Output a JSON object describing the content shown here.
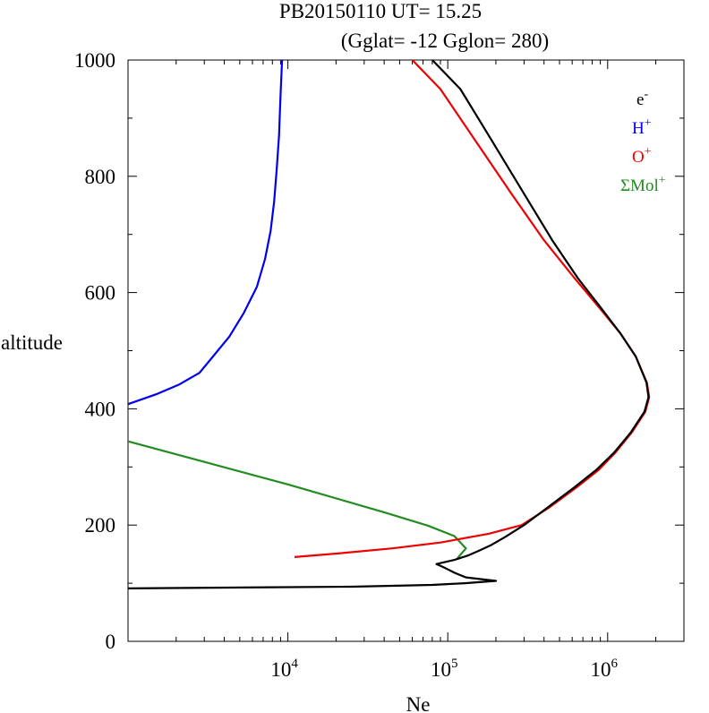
{
  "chart_data": {
    "type": "line",
    "title": "PB20150110   UT=  15.25",
    "subtitle": "(Gglat= -12   Gglon=  280)",
    "xlabel": "Ne",
    "ylabel": "altitude",
    "x_scale": "log",
    "xlim": [
      1000,
      3000000
    ],
    "ylim": [
      0,
      1000
    ],
    "x_ticks": [
      {
        "base": "10",
        "exp": "4",
        "value": 10000
      },
      {
        "base": "10",
        "exp": "5",
        "value": 100000
      },
      {
        "base": "10",
        "exp": "6",
        "value": 1000000
      }
    ],
    "y_ticks": [
      "0",
      "200",
      "400",
      "600",
      "800",
      "1000"
    ],
    "y_tick_values": [
      0,
      200,
      400,
      600,
      800,
      1000
    ],
    "grid": false,
    "legend_position": "top-right",
    "series": [
      {
        "name": "e",
        "sup": "-",
        "color": "#000000",
        "points": [
          [
            1000,
            91
          ],
          [
            8000,
            93
          ],
          [
            25000,
            94
          ],
          [
            80000,
            97
          ],
          [
            128000,
            100
          ],
          [
            200000,
            104
          ],
          [
            130000,
            110
          ],
          [
            110000,
            118
          ],
          [
            95000,
            127
          ],
          [
            85000,
            133
          ],
          [
            110000,
            140
          ],
          [
            135000,
            148
          ],
          [
            160000,
            157
          ],
          [
            185000,
            165
          ],
          [
            230000,
            180
          ],
          [
            300000,
            200
          ],
          [
            420000,
            230
          ],
          [
            620000,
            265
          ],
          [
            850000,
            295
          ],
          [
            1100000,
            325
          ],
          [
            1400000,
            360
          ],
          [
            1700000,
            395
          ],
          [
            1800000,
            420
          ],
          [
            1750000,
            445
          ],
          [
            1500000,
            490
          ],
          [
            1200000,
            530
          ],
          [
            900000,
            575
          ],
          [
            650000,
            625
          ],
          [
            450000,
            690
          ],
          [
            300000,
            770
          ],
          [
            190000,
            860
          ],
          [
            120000,
            950
          ],
          [
            80000,
            1000
          ]
        ]
      },
      {
        "name": "H",
        "sup": "+",
        "color": "#0000ee",
        "points": [
          [
            1000,
            408
          ],
          [
            1500,
            425
          ],
          [
            2100,
            442
          ],
          [
            2800,
            462
          ],
          [
            3400,
            490
          ],
          [
            4300,
            524
          ],
          [
            5300,
            565
          ],
          [
            6400,
            610
          ],
          [
            7200,
            658
          ],
          [
            7800,
            706
          ],
          [
            8200,
            756
          ],
          [
            8500,
            810
          ],
          [
            8800,
            870
          ],
          [
            9000,
            940
          ],
          [
            9200,
            1000
          ]
        ]
      },
      {
        "name": "O",
        "sup": "+",
        "color": "#ee0000",
        "points": [
          [
            11000,
            145
          ],
          [
            22000,
            152
          ],
          [
            45000,
            160
          ],
          [
            90000,
            170
          ],
          [
            180000,
            185
          ],
          [
            290000,
            200
          ],
          [
            430000,
            230
          ],
          [
            640000,
            265
          ],
          [
            880000,
            295
          ],
          [
            1120000,
            325
          ],
          [
            1420000,
            360
          ],
          [
            1720000,
            395
          ],
          [
            1820000,
            420
          ],
          [
            1760000,
            445
          ],
          [
            1500000,
            490
          ],
          [
            1200000,
            530
          ],
          [
            880000,
            575
          ],
          [
            620000,
            625
          ],
          [
            400000,
            690
          ],
          [
            250000,
            770
          ],
          [
            150000,
            860
          ],
          [
            90000,
            950
          ],
          [
            60000,
            1000
          ]
        ]
      },
      {
        "name": "ΣMol",
        "sup": "+",
        "color": "#228b22",
        "points": [
          [
            1000,
            344
          ],
          [
            10000,
            270
          ],
          [
            40000,
            222
          ],
          [
            75000,
            199
          ],
          [
            110000,
            181
          ],
          [
            130000,
            160
          ],
          [
            115000,
            143
          ]
        ]
      }
    ]
  }
}
